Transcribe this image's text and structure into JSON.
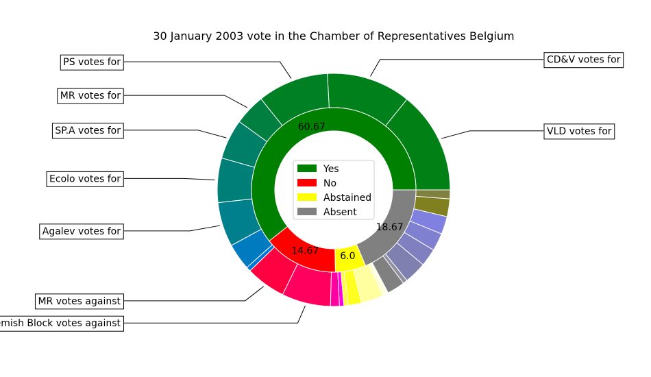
{
  "chart_data": {
    "type": "pie",
    "title": "30 January 2003 vote in the Chamber of Representatives Belgium",
    "inner_ring": {
      "slices": [
        {
          "label": "Yes",
          "value": 91,
          "percent_label": "60.67",
          "color": "#008000"
        },
        {
          "label": "No",
          "value": 22,
          "percent_label": "14.67",
          "color": "#ff0000"
        },
        {
          "label": "Abstained",
          "value": 9,
          "percent_label": "6.0",
          "color": "#ffff00"
        },
        {
          "label": "Absent",
          "value": 28,
          "percent_label": "18.67",
          "color": "#808080"
        }
      ]
    },
    "outer_ring": {
      "slices": [
        {
          "value": 23,
          "color": "#008015",
          "label": "VLD votes for"
        },
        {
          "value": 19,
          "color": "#00801a",
          "label": "CD&V votes for"
        },
        {
          "value": 16,
          "color": "#008025",
          "label": "PS votes for"
        },
        {
          "value": 7,
          "color": "#007f40",
          "label": "MR votes for"
        },
        {
          "value": 9,
          "color": "#007f68",
          "label": "SP.A votes for"
        },
        {
          "value": 10,
          "color": "#007f79",
          "label": "Ecolo votes for"
        },
        {
          "value": 10,
          "color": "#007f8c",
          "label": "Agalev votes for"
        },
        {
          "value": 6,
          "color": "#007bbf",
          "label": ""
        },
        {
          "value": 1,
          "color": "#0076d6",
          "label": ""
        },
        {
          "value": 9,
          "color": "#ff0040",
          "label": "MR votes against"
        },
        {
          "value": 11,
          "color": "#ff005e",
          "label": "Flemish Block votes against"
        },
        {
          "value": 2,
          "color": "#ff00a0",
          "label": ""
        },
        {
          "value": 1,
          "color": "#ff00e0",
          "label": ""
        },
        {
          "value": 1,
          "color": "#ffff40",
          "label": ""
        },
        {
          "value": 3,
          "color": "#ffff20",
          "label": ""
        },
        {
          "value": 5,
          "color": "#ffffa0",
          "label": ""
        },
        {
          "value": 0.8,
          "color": "#ffffd0",
          "label": ""
        },
        {
          "value": 0.5,
          "color": "#ffffe8",
          "label": ""
        },
        {
          "value": 4,
          "color": "#808080",
          "label": ""
        },
        {
          "value": 1,
          "color": "#9090a0",
          "label": ""
        },
        {
          "value": 5,
          "color": "#8080b0",
          "label": ""
        },
        {
          "value": 4,
          "color": "#8080c0",
          "label": ""
        },
        {
          "value": 4,
          "color": "#8080d0",
          "label": ""
        },
        {
          "value": 4,
          "color": "#8080e0",
          "label": ""
        },
        {
          "value": 4,
          "color": "#808020",
          "label": ""
        },
        {
          "value": 2,
          "color": "#808040",
          "label": ""
        }
      ]
    },
    "legend": {
      "placement": "center",
      "entries": [
        {
          "label": "Yes",
          "color": "#008000"
        },
        {
          "label": "No",
          "color": "#ff0000"
        },
        {
          "label": "Abstained",
          "color": "#ffff00"
        },
        {
          "label": "Absent",
          "color": "#808080"
        }
      ]
    }
  }
}
